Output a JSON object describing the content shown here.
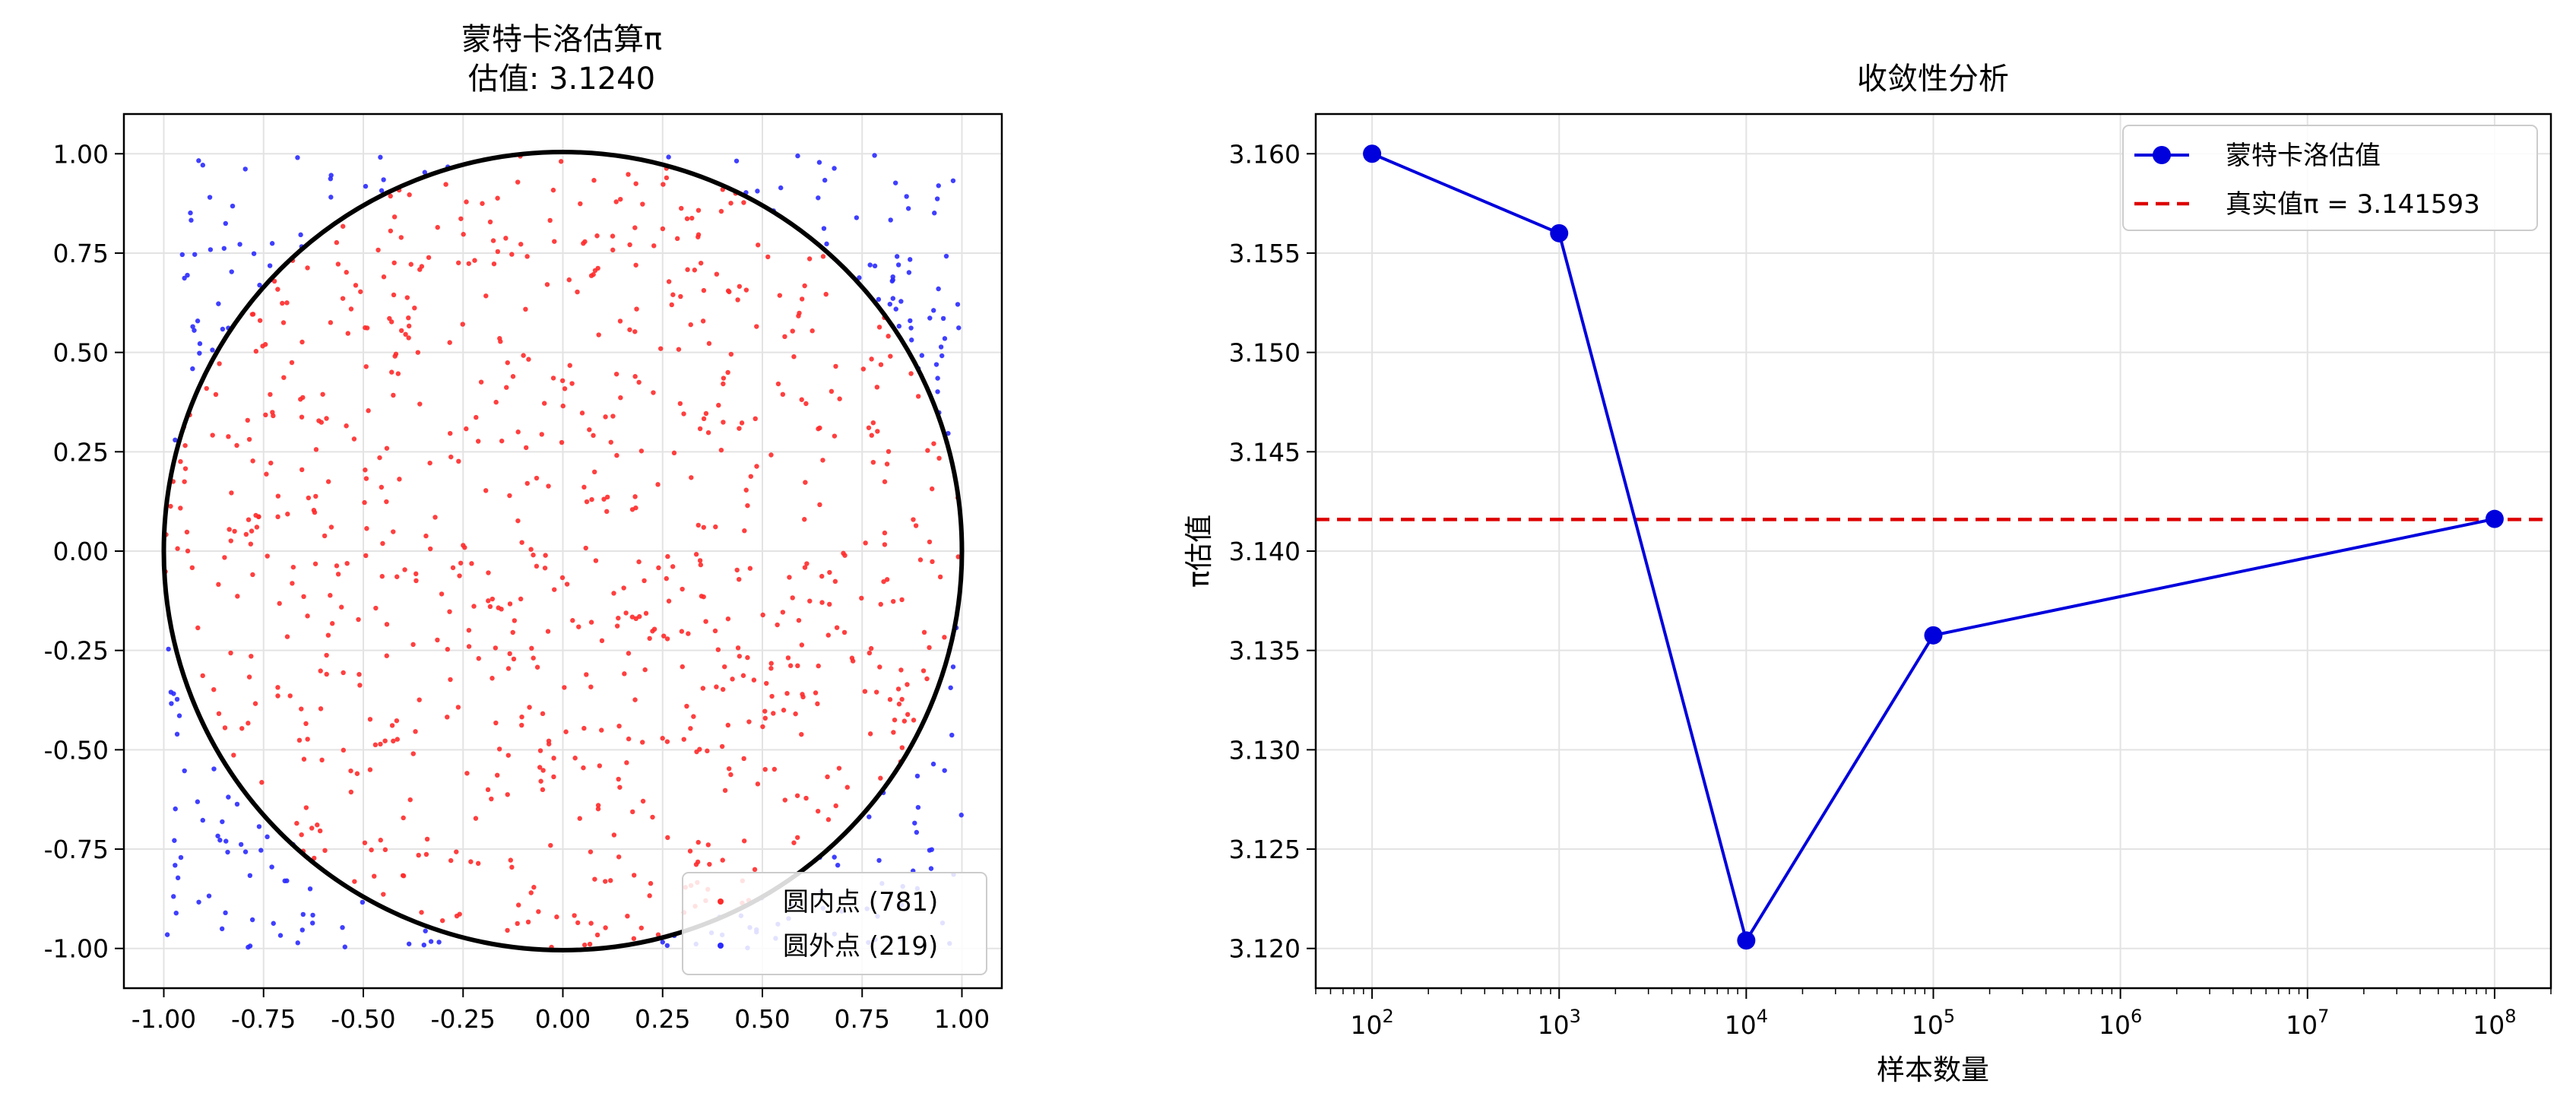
{
  "chart_data": [
    {
      "type": "scatter",
      "title": "蒙特卡洛估算π",
      "subtitle": "估值: 3.1240",
      "xlim": [
        -1.1,
        1.1
      ],
      "ylim": [
        -1.1,
        1.1
      ],
      "x_ticks": [
        "-1.00",
        "-0.75",
        "-0.50",
        "-0.25",
        "0.00",
        "0.25",
        "0.50",
        "0.75",
        "1.00"
      ],
      "y_ticks": [
        "1.00",
        "0.75",
        "0.50",
        "0.25",
        "0.00",
        "-0.25",
        "-0.50",
        "-0.75",
        "-1.00"
      ],
      "grid": true,
      "legend_position": "lower-right",
      "circle": {
        "center": [
          0,
          0
        ],
        "radius": 1,
        "color": "#000000"
      },
      "series": [
        {
          "name": "圆内点 (781)",
          "count": 781,
          "color": "#ff2a2a",
          "region": "inside-unit-circle"
        },
        {
          "name": "圆外点 (219)",
          "count": 219,
          "color": "#2a2aff",
          "region": "outside-unit-circle"
        }
      ]
    },
    {
      "type": "line",
      "title": "收敛性分析",
      "xlabel": "样本数量",
      "ylabel": "π估值",
      "x_scale": "log",
      "xlim": [
        50,
        200000000
      ],
      "ylim": [
        3.118,
        3.162
      ],
      "x_ticks": [
        {
          "base": "10",
          "exp": "2"
        },
        {
          "base": "10",
          "exp": "3"
        },
        {
          "base": "10",
          "exp": "4"
        },
        {
          "base": "10",
          "exp": "5"
        },
        {
          "base": "10",
          "exp": "6"
        },
        {
          "base": "10",
          "exp": "7"
        },
        {
          "base": "10",
          "exp": "8"
        }
      ],
      "y_ticks": [
        "3.160",
        "3.155",
        "3.150",
        "3.145",
        "3.140",
        "3.135",
        "3.130",
        "3.125",
        "3.120"
      ],
      "grid": true,
      "legend_position": "top-right",
      "series": [
        {
          "name": "蒙特卡洛估值",
          "color": "#0000dd",
          "marker": "circle",
          "x": [
            100,
            1000,
            10000,
            100000,
            100000000
          ],
          "y": [
            3.16,
            3.156,
            3.1204,
            3.13576,
            3.14162
          ]
        }
      ],
      "reference_line": {
        "name": "真实值π = 3.141593",
        "y": 3.141593,
        "color": "#dd0000",
        "style": "dashed"
      }
    }
  ]
}
